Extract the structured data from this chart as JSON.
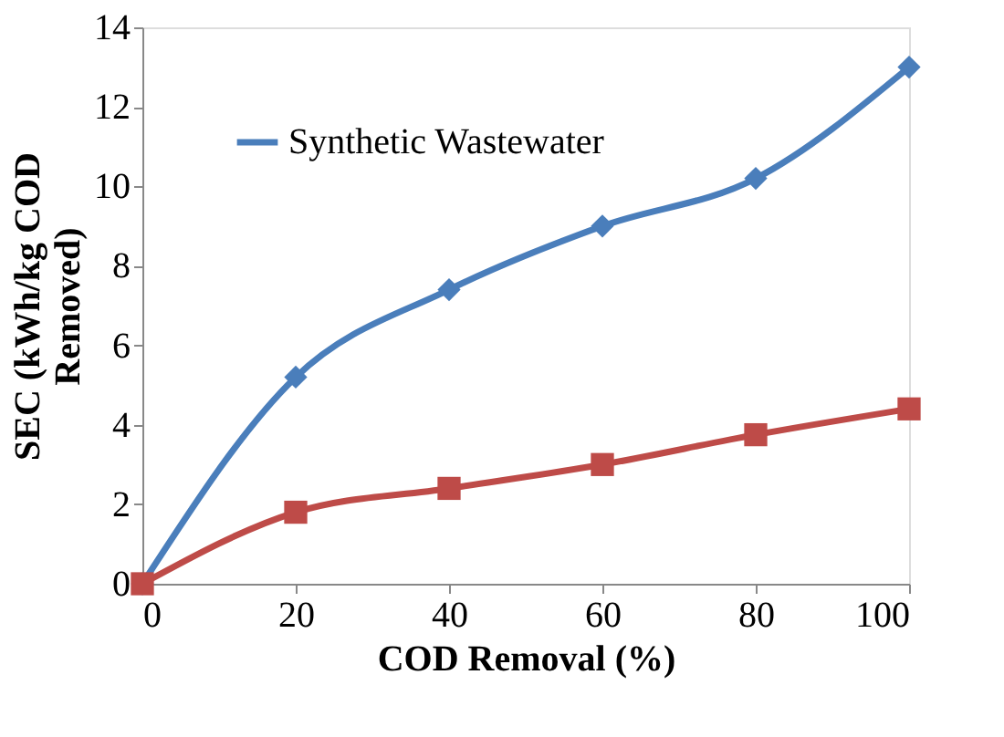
{
  "chart_data": {
    "type": "line",
    "xlabel": "COD Removal (%)",
    "ylabel": "SEC (kWh/kg COD Removed)",
    "x": [
      0,
      20,
      40,
      60,
      80,
      100
    ],
    "series": [
      {
        "name": "Synthetic Wastewater",
        "color": "#4a7ebb",
        "marker": "diamond",
        "values": [
          0,
          5.2,
          7.4,
          9.0,
          10.2,
          13.0
        ]
      },
      {
        "color": "#be4b48",
        "marker": "square",
        "values": [
          0,
          1.8,
          2.4,
          3.0,
          3.75,
          4.4
        ]
      }
    ],
    "xlim": [
      0,
      100
    ],
    "xticks": [
      0,
      20,
      40,
      60,
      80,
      100
    ],
    "ylim": [
      0,
      14
    ],
    "yticks": [
      0,
      2,
      4,
      6,
      8,
      10,
      12,
      14
    ],
    "grid": false,
    "legend": "top left",
    "line_style": "solid"
  }
}
